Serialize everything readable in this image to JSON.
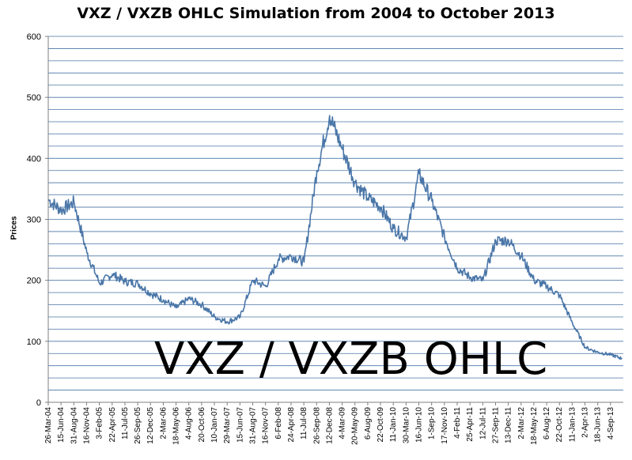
{
  "chart_data": {
    "type": "line",
    "title": "VXZ / VXZB OHLC Simulation from 2004 to October 2013",
    "ylabel": "Prices",
    "xlabel": "",
    "ylim": [
      0,
      600
    ],
    "y_ticks": [
      "0",
      "100",
      "200",
      "300",
      "400",
      "500",
      "600"
    ],
    "y_tick_values": [
      0,
      100,
      200,
      300,
      400,
      500,
      600
    ],
    "grid": true,
    "line_color": "#4a76a8",
    "grid_color": "#4a76a8",
    "overlay_text": "VXZ / VXZB OHLC",
    "categories": [
      "26-Mar-04",
      "15-Jun-04",
      "31-Aug-04",
      "16-Nov-04",
      "3-Feb-05",
      "22-Apr-05",
      "11-Jul-05",
      "26-Sep-05",
      "12-Dec-05",
      "2-Mar-06",
      "18-May-06",
      "4-Aug-06",
      "20-Oct-06",
      "10-Jan-07",
      "29-Mar-07",
      "15-Jun-07",
      "31-Aug-07",
      "16-Nov-07",
      "6-Feb-08",
      "24-Apr-08",
      "11-Jul-08",
      "26-Sep-08",
      "12-Dec-08",
      "4-Mar-09",
      "20-May-09",
      "6-Aug-09",
      "22-Oct-09",
      "11-Jan-10",
      "30-Mar-10",
      "16-Jun-10",
      "1-Sep-10",
      "17-Nov-10",
      "4-Feb-11",
      "25-Apr-11",
      "12-Jul-11",
      "27-Sep-11",
      "13-Dec-11",
      "2-Mar-12",
      "18-May-12",
      "6-Aug-12",
      "22-Oct-12",
      "11-Jan-13",
      "2-Apr-13",
      "18-Jun-13",
      "4-Sep-13"
    ],
    "series": [
      {
        "x": [
          "26-Mar-04",
          "15-Jun-04",
          "31-Aug-04",
          "16-Nov-04",
          "3-Feb-05",
          "22-Apr-05",
          "11-Jul-05",
          "26-Sep-05",
          "12-Dec-05",
          "2-Mar-06",
          "18-May-06",
          "4-Aug-06",
          "20-Oct-06",
          "10-Jan-07",
          "29-Mar-07",
          "15-Jun-07",
          "31-Aug-07",
          "16-Nov-07",
          "6-Feb-08",
          "24-Apr-08",
          "11-Jul-08",
          "26-Sep-08",
          "12-Dec-08",
          "4-Mar-09",
          "20-May-09",
          "6-Aug-09",
          "22-Oct-09",
          "11-Jan-10",
          "30-Mar-10",
          "16-Jun-10",
          "1-Sep-10",
          "17-Nov-10",
          "4-Feb-11",
          "25-Apr-11",
          "12-Jul-11",
          "27-Sep-11",
          "13-Dec-11",
          "2-Mar-12",
          "18-May-12",
          "6-Aug-12",
          "22-Oct-12",
          "11-Jan-13",
          "2-Apr-13",
          "18-Jun-13",
          "4-Sep-13",
          "15-Oct-13"
        ],
        "values": [
          332,
          315,
          328,
          245,
          195,
          210,
          198,
          195,
          178,
          168,
          155,
          170,
          160,
          140,
          132,
          140,
          200,
          190,
          235,
          240,
          230,
          380,
          470,
          415,
          360,
          335,
          320,
          285,
          270,
          375,
          330,
          270,
          220,
          205,
          200,
          265,
          265,
          240,
          200,
          190,
          175,
          130,
          90,
          82,
          78,
          72
        ]
      }
    ]
  }
}
